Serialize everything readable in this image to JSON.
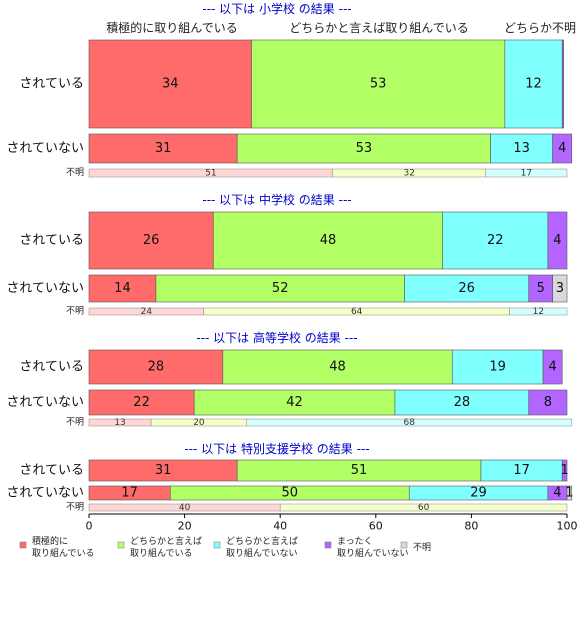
{
  "chart_data": {
    "type": "bar",
    "orientation": "horizontal-stacked-percent",
    "xlim": [
      0,
      100
    ],
    "xticks": [
      "0",
      "20",
      "40",
      "60",
      "80",
      "100"
    ],
    "column_labels": [
      "積極的に取り組んでいる",
      "どちらかと言えば取り組んでいる",
      "どちらか不明"
    ],
    "legend": {
      "placement": "bottom-left",
      "items": [
        {
          "line1": "積極的に",
          "line2": "取り組んでいる",
          "color": "#ff6b6b"
        },
        {
          "line1": "どちらかと言えば",
          "line2": "取り組んでいる",
          "color": "#b3ff66"
        },
        {
          "line1": "どちらかと言えば",
          "line2": "取り組んでいない",
          "color": "#80ffff"
        },
        {
          "line1": "まったく",
          "line2": "取り組んでいない",
          "color": "#b266ff"
        },
        {
          "line1": "不明",
          "line2": "",
          "color": "#d9d9d9"
        }
      ]
    },
    "unknown_colors": [
      "#ffd6d6",
      "#f5ffc9",
      "#d4ffff"
    ],
    "sections": [
      {
        "title": "--- 以下は 小学校 の結果 ---",
        "rows": [
          {
            "label": "されている",
            "values": [
              34,
              53,
              12,
              0.3,
              0
            ],
            "labels": [
              "34",
              "53",
              "12",
              "",
              ""
            ]
          },
          {
            "label": "されていない",
            "values": [
              31,
              53,
              13,
              4,
              0
            ],
            "labels": [
              "31",
              "53",
              "13",
              "4",
              ""
            ]
          }
        ],
        "unknown": {
          "label": "不明",
          "values": [
            51,
            32,
            17
          ],
          "labels": [
            "51",
            "32",
            "17"
          ]
        }
      },
      {
        "title": "--- 以下は 中学校 の結果 ---",
        "rows": [
          {
            "label": "されている",
            "values": [
              26,
              48,
              22,
              4,
              0
            ],
            "labels": [
              "26",
              "48",
              "22",
              "4",
              ""
            ]
          },
          {
            "label": "されていない",
            "values": [
              14,
              52,
              26,
              5,
              3
            ],
            "labels": [
              "14",
              "52",
              "26",
              "5",
              "3"
            ]
          }
        ],
        "unknown": {
          "label": "不明",
          "values": [
            24,
            64,
            12
          ],
          "labels": [
            "24",
            "64",
            "12"
          ]
        }
      },
      {
        "title": "--- 以下は 高等学校 の結果 ---",
        "rows": [
          {
            "label": "されている",
            "values": [
              28,
              48,
              19,
              4,
              0
            ],
            "labels": [
              "28",
              "48",
              "19",
              "4",
              ""
            ]
          },
          {
            "label": "されていない",
            "values": [
              22,
              42,
              28,
              8,
              0
            ],
            "labels": [
              "22",
              "42",
              "28",
              "8",
              ""
            ]
          }
        ],
        "unknown": {
          "label": "不明",
          "values": [
            13,
            20,
            68
          ],
          "labels": [
            "13",
            "20",
            "68"
          ]
        }
      },
      {
        "title": "--- 以下は 特別支援学校 の結果 ---",
        "rows": [
          {
            "label": "されている",
            "values": [
              31,
              51,
              17,
              1,
              0
            ],
            "labels": [
              "31",
              "51",
              "17",
              "1",
              ""
            ]
          },
          {
            "label": "されていない",
            "values": [
              17,
              50,
              29,
              4,
              1
            ],
            "labels": [
              "17",
              "50",
              "29",
              "4",
              "1"
            ]
          }
        ],
        "unknown": {
          "label": "不明",
          "values": [
            40,
            60,
            0
          ],
          "labels": [
            "40",
            "60",
            ""
          ]
        }
      }
    ]
  }
}
